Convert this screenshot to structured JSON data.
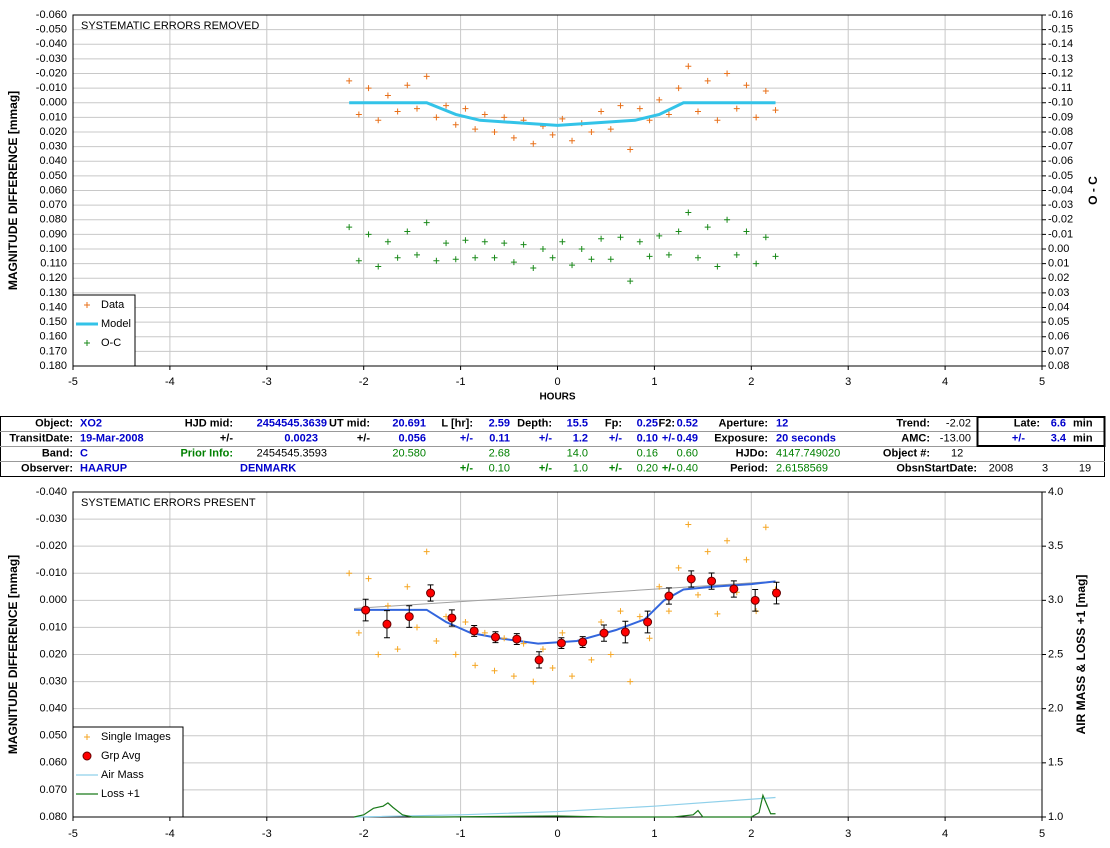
{
  "chart_data": [
    {
      "type": "scatter",
      "title": "SYSTEMATIC ERRORS REMOVED",
      "y_label": "MAGNITUDE DIFFERENCE [mmag]",
      "y2_label": "O - C",
      "x_label": "HOURS",
      "xlim": [
        -5,
        5
      ],
      "xticks": [
        -5,
        -4,
        -3,
        -2,
        -1,
        0,
        1,
        2,
        3,
        4,
        5
      ],
      "ylim": [
        -0.06,
        0.18
      ],
      "y_inverted": true,
      "yticks": [
        {
          "value": -0.06,
          "label": "-0.060"
        },
        {
          "value": -0.05,
          "label": "-0.050"
        },
        {
          "value": -0.04,
          "label": "-0.040"
        },
        {
          "value": -0.03,
          "label": "-0.030"
        },
        {
          "value": -0.02,
          "label": "-0.020"
        },
        {
          "value": -0.01,
          "label": "-0.010"
        },
        {
          "value": 0,
          "label": "0.000"
        },
        {
          "value": 0.01,
          "label": "0.010"
        },
        {
          "value": 0.02,
          "label": "0.020"
        },
        {
          "value": 0.03,
          "label": "0.030"
        },
        {
          "value": 0.04,
          "label": "0.040"
        },
        {
          "value": 0.05,
          "label": "0.050"
        },
        {
          "value": 0.06,
          "label": "0.060"
        },
        {
          "value": 0.07,
          "label": "0.070"
        },
        {
          "value": 0.08,
          "label": "0.080"
        },
        {
          "value": 0.09,
          "label": "0.090"
        },
        {
          "value": 0.1,
          "label": "0.100"
        },
        {
          "value": 0.11,
          "label": "0.110"
        },
        {
          "value": 0.12,
          "label": "0.120"
        },
        {
          "value": 0.13,
          "label": "0.130"
        },
        {
          "value": 0.14,
          "label": "0.140"
        },
        {
          "value": 0.15,
          "label": "0.150"
        },
        {
          "value": 0.16,
          "label": "0.160"
        },
        {
          "value": 0.17,
          "label": "0.170"
        },
        {
          "value": 0.18,
          "label": "0.180"
        }
      ],
      "y2lim": [
        -0.16,
        0.08
      ],
      "y2_inverted": true,
      "y2ticks": [
        {
          "value": -0.16,
          "label": "-0.16"
        },
        {
          "value": -0.15,
          "label": "-0.15"
        },
        {
          "value": -0.14,
          "label": "-0.14"
        },
        {
          "value": -0.13,
          "label": "-0.13"
        },
        {
          "value": -0.12,
          "label": "-0.12"
        },
        {
          "value": -0.11,
          "label": "-0.11"
        },
        {
          "value": -0.1,
          "label": "-0.10"
        },
        {
          "value": -0.09,
          "label": "-0.09"
        },
        {
          "value": -0.08,
          "label": "-0.08"
        },
        {
          "value": -0.07,
          "label": "-0.07"
        },
        {
          "value": -0.06,
          "label": "-0.06"
        },
        {
          "value": -0.05,
          "label": "-0.05"
        },
        {
          "value": -0.04,
          "label": "-0.04"
        },
        {
          "value": -0.03,
          "label": "-0.03"
        },
        {
          "value": -0.02,
          "label": "-0.02"
        },
        {
          "value": -0.01,
          "label": "-0.01"
        },
        {
          "value": 0,
          "label": "0.00"
        },
        {
          "value": 0.01,
          "label": "0.01"
        },
        {
          "value": 0.02,
          "label": "0.02"
        },
        {
          "value": 0.03,
          "label": "0.03"
        },
        {
          "value": 0.04,
          "label": "0.04"
        },
        {
          "value": 0.05,
          "label": "0.05"
        },
        {
          "value": 0.06,
          "label": "0.06"
        },
        {
          "value": 0.07,
          "label": "0.07"
        },
        {
          "value": 0.08,
          "label": "0.08"
        }
      ],
      "grid": true,
      "legend": "lower left",
      "series": [
        {
          "name": "Data",
          "color": "#e8701a",
          "mark": "plus",
          "x": [
            -2.15,
            -2.05,
            -1.95,
            -1.85,
            -1.75,
            -1.65,
            -1.55,
            -1.45,
            -1.35,
            -1.25,
            -1.15,
            -1.05,
            -0.95,
            -0.85,
            -0.75,
            -0.65,
            -0.55,
            -0.45,
            -0.35,
            -0.25,
            -0.15,
            -0.05,
            0.05,
            0.15,
            0.25,
            0.35,
            0.45,
            0.55,
            0.65,
            0.75,
            0.85,
            0.95,
            1.05,
            1.15,
            1.25,
            1.35,
            1.45,
            1.55,
            1.65,
            1.75,
            1.85,
            1.95,
            2.05,
            2.15,
            2.25
          ],
          "values": [
            -0.015,
            0.008,
            -0.01,
            0.012,
            -0.005,
            0.006,
            -0.012,
            0.004,
            -0.018,
            0.01,
            0.002,
            0.015,
            0.004,
            0.018,
            0.008,
            0.02,
            0.01,
            0.024,
            0.012,
            0.028,
            0.016,
            0.022,
            0.011,
            0.026,
            0.014,
            0.02,
            0.006,
            0.018,
            0.002,
            0.032,
            0.004,
            0.012,
            -0.002,
            0.008,
            -0.01,
            -0.025,
            0.006,
            -0.015,
            0.012,
            -0.02,
            0.004,
            -0.012,
            0.01,
            -0.008,
            0.005
          ]
        },
        {
          "name": "Model",
          "color": "#33c3e8",
          "mark": "line",
          "x": [
            -2.15,
            -1.35,
            -1.05,
            -0.8,
            0,
            0.8,
            1.05,
            1.3,
            2.25
          ],
          "values": [
            0,
            0,
            0.008,
            0.012,
            0.0155,
            0.012,
            0.008,
            0,
            0
          ]
        },
        {
          "name": "O-C",
          "color": "#1a8a1a",
          "mark": "plus",
          "axis": "y2",
          "x": [
            -2.15,
            -2.05,
            -1.95,
            -1.85,
            -1.75,
            -1.65,
            -1.55,
            -1.45,
            -1.35,
            -1.25,
            -1.15,
            -1.05,
            -0.95,
            -0.85,
            -0.75,
            -0.65,
            -0.55,
            -0.45,
            -0.35,
            -0.25,
            -0.15,
            -0.05,
            0.05,
            0.15,
            0.25,
            0.35,
            0.45,
            0.55,
            0.65,
            0.75,
            0.85,
            0.95,
            1.05,
            1.15,
            1.25,
            1.35,
            1.45,
            1.55,
            1.65,
            1.75,
            1.85,
            1.95,
            2.05,
            2.15,
            2.25
          ],
          "values": [
            -0.015,
            0.008,
            -0.01,
            0.012,
            -0.005,
            0.006,
            -0.012,
            0.004,
            -0.018,
            0.008,
            -0.004,
            0.007,
            -0.006,
            0.006,
            -0.005,
            0.006,
            -0.004,
            0.009,
            -0.003,
            0.013,
            0,
            0.006,
            -0.005,
            0.011,
            0,
            0.007,
            -0.007,
            0.007,
            -0.008,
            0.022,
            -0.005,
            0.005,
            -0.009,
            0.004,
            -0.012,
            -0.025,
            0.006,
            -0.015,
            0.012,
            -0.02,
            0.004,
            -0.012,
            0.01,
            -0.008,
            0.005
          ]
        }
      ]
    },
    {
      "type": "scatter",
      "title": "SYSTEMATIC ERRORS PRESENT",
      "y_label": "MAGNITUDE DIFFERENCE [mmag]",
      "y2_label": "AIR MASS & LOSS +1 [mag]",
      "xlim": [
        -5,
        5
      ],
      "xticks": [
        -5,
        -4,
        -3,
        -2,
        -1,
        0,
        1,
        2,
        3,
        4,
        5
      ],
      "ylim": [
        -0.04,
        0.08
      ],
      "y_inverted": true,
      "yticks": [
        {
          "value": -0.04,
          "label": "-0.040"
        },
        {
          "value": -0.03,
          "label": "-0.030"
        },
        {
          "value": -0.02,
          "label": "-0.020"
        },
        {
          "value": -0.01,
          "label": "-0.010"
        },
        {
          "value": 0,
          "label": "0.000"
        },
        {
          "value": 0.01,
          "label": "0.010"
        },
        {
          "value": 0.02,
          "label": "0.020"
        },
        {
          "value": 0.03,
          "label": "0.030"
        },
        {
          "value": 0.04,
          "label": "0.040"
        },
        {
          "value": 0.05,
          "label": "0.050"
        },
        {
          "value": 0.06,
          "label": "0.060"
        },
        {
          "value": 0.07,
          "label": "0.070"
        },
        {
          "value": 0.08,
          "label": "0.080"
        }
      ],
      "y2lim": [
        1,
        4
      ],
      "y2ticks": [
        {
          "value": 1,
          "label": "1.0"
        },
        1.5,
        {
          "value": 2,
          "label": "2.0"
        },
        2.5,
        {
          "value": 3,
          "label": "3.0"
        },
        3.5,
        {
          "value": 4,
          "label": "4.0"
        }
      ],
      "grid": true,
      "legend": "lower left",
      "series": [
        {
          "name": "Single Images",
          "color": "#f5a623",
          "mark": "plus",
          "x": [
            -2.15,
            -2.05,
            -1.95,
            -1.85,
            -1.75,
            -1.65,
            -1.55,
            -1.45,
            -1.35,
            -1.25,
            -1.15,
            -1.05,
            -0.95,
            -0.85,
            -0.75,
            -0.65,
            -0.55,
            -0.45,
            -0.35,
            -0.25,
            -0.15,
            -0.05,
            0.05,
            0.15,
            0.25,
            0.35,
            0.45,
            0.55,
            0.65,
            0.75,
            0.85,
            0.95,
            1.05,
            1.15,
            1.25,
            1.35,
            1.45,
            1.55,
            1.65,
            1.75,
            1.85,
            1.95,
            2.05,
            2.15,
            2.25
          ],
          "values": [
            -0.01,
            0.012,
            -0.008,
            0.02,
            0.002,
            0.018,
            -0.005,
            0.01,
            -0.018,
            0.015,
            0.006,
            0.02,
            0.008,
            0.024,
            0.012,
            0.026,
            0.014,
            0.028,
            0.016,
            0.03,
            0.018,
            0.025,
            0.012,
            0.028,
            0.015,
            0.022,
            0.008,
            0.02,
            0.004,
            0.03,
            0.006,
            0.014,
            -0.005,
            0.004,
            -0.012,
            -0.028,
            -0.002,
            -0.018,
            0.005,
            -0.022,
            -0.003,
            -0.015,
            0.004,
            -0.027,
            -0.004
          ]
        },
        {
          "name": "Grp Avg",
          "color": "#ff0000",
          "mark": "circle",
          "x": [
            -1.98,
            -1.76,
            -1.53,
            -1.31,
            -1.09,
            -0.86,
            -0.64,
            -0.42,
            -0.19,
            0.04,
            0.26,
            0.48,
            0.7,
            0.93,
            1.15,
            1.38,
            1.59,
            1.82,
            2.04,
            2.26
          ],
          "values": [
            0.0036,
            0.0088,
            0.006,
            -0.0027,
            0.0065,
            0.0113,
            0.0136,
            0.0143,
            0.022,
            0.0158,
            0.0154,
            0.0121,
            0.0117,
            0.008,
            -0.0016,
            -0.0079,
            -0.0071,
            -0.0042,
            0,
            -0.0027
          ],
          "errors": [
            0.004,
            0.005,
            0.004,
            0.003,
            0.003,
            0.002,
            0.002,
            0.002,
            0.003,
            0.002,
            0.002,
            0.003,
            0.004,
            0.004,
            0.003,
            0.003,
            0.003,
            0.003,
            0.004,
            0.004
          ]
        },
        {
          "name": "Air Mass",
          "color": "#8fd0ea",
          "mark": "line",
          "axis": "y2",
          "x": [
            -2.1,
            -1,
            0,
            1,
            2.25
          ],
          "values": [
            1,
            1.02,
            1.05,
            1.1,
            1.18
          ]
        },
        {
          "name": "Loss +1",
          "color": "#1a7a1a",
          "mark": "line",
          "axis": "y2",
          "x": [
            -2.1,
            -2,
            -1.9,
            -1.8,
            -1.75,
            -1.7,
            -1.6,
            -1.5,
            -1.4,
            -1.2,
            0,
            0.5,
            1.2,
            1.4,
            1.45,
            1.5,
            2,
            2.08,
            2.12,
            2.2,
            2.25
          ],
          "values": [
            1,
            1.02,
            1.08,
            1.1,
            1.13,
            1.09,
            1.02,
            1,
            1,
            1,
            1.01,
            1,
            1,
            1.02,
            1.06,
            1,
            1,
            1.04,
            1.2,
            1.03,
            1.03
          ]
        }
      ],
      "lines": [
        {
          "color": "#a0a0a0",
          "x": [
            -2.1,
            2.25
          ],
          "values": [
            0.003,
            -0.007
          ]
        },
        {
          "color": "#3366dd",
          "x": [
            -2.1,
            -1.35,
            -1.15,
            -0.9,
            -0.6,
            -0.2,
            0.2,
            0.6,
            0.9,
            1.1,
            1.3,
            1.6,
            2,
            2.25
          ],
          "values": [
            0.0035,
            0.0035,
            0.008,
            0.012,
            0.014,
            0.016,
            0.015,
            0.011,
            0.007,
            0,
            -0.004,
            -0.005,
            -0.006,
            -0.007
          ]
        }
      ]
    }
  ],
  "table": {
    "rows": [
      [
        "Object:",
        "XO2",
        "HJD mid:",
        "2454545.3639",
        "UT mid:",
        "20.691",
        "L [hr]:",
        "2.59",
        "Depth:",
        "15.5",
        "Fp:",
        "0.25",
        "F2:",
        "0.52",
        "Aperture:",
        "12",
        "Trend:",
        "-2.02",
        "Late:",
        "6.6",
        "min"
      ],
      [
        "TransitDate:",
        "19-Mar-2008",
        "+/-",
        "0.0023",
        "+/-",
        "0.056",
        "+/-",
        "0.11",
        "+/-",
        "1.2",
        "+/-",
        "0.10",
        "+/-",
        "0.49",
        "Exposure:",
        "20 seconds",
        "AMC:",
        "-13.00",
        "+/-",
        "3.4",
        "min"
      ],
      [
        "Band:",
        "C",
        "Prior Info:",
        "2454545.3593",
        "20.580",
        "2.68",
        "14.0",
        "0.16",
        "0.60",
        "HJDo:",
        "4147.749020",
        "Object #:",
        "12"
      ],
      [
        "Observer:",
        "HAARUP",
        "DENMARK",
        "+/-",
        "0.10",
        "+/-",
        "1.0",
        "+/-",
        "0.20",
        "+/-",
        "0.40",
        "Period:",
        "2.6158569",
        "ObsnStartDate:",
        "2008",
        "3",
        "19"
      ]
    ]
  }
}
